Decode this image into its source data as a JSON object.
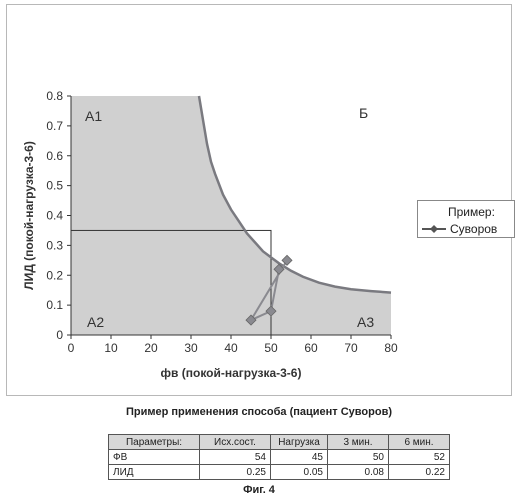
{
  "chart_data": {
    "type": "scatter",
    "xlabel": "фв (покой-нагрузка-3-6)",
    "ylabel": "ЛИД (покой-нагрузка-3-6)",
    "xlim": [
      0,
      80
    ],
    "ylim": [
      0,
      0.8
    ],
    "x_ticks": [
      "0",
      "10",
      "20",
      "30",
      "40",
      "50",
      "60",
      "70",
      "80"
    ],
    "y_ticks": [
      "0",
      "0.1",
      "0.2",
      "0.3",
      "0.4",
      "0.5",
      "0.6",
      "0.7",
      "0.8"
    ],
    "grid": false,
    "regions": [
      {
        "label": "А1"
      },
      {
        "label": "Б"
      },
      {
        "label": "А2"
      },
      {
        "label": "А3"
      }
    ],
    "boundary_curve": {
      "x": [
        32,
        33,
        34,
        35,
        36,
        38,
        40,
        42,
        44,
        46,
        48,
        50,
        52,
        55,
        58,
        62,
        66,
        70,
        75,
        80
      ],
      "y": [
        0.8,
        0.72,
        0.64,
        0.58,
        0.54,
        0.47,
        0.42,
        0.38,
        0.34,
        0.31,
        0.28,
        0.26,
        0.24,
        0.215,
        0.195,
        0.175,
        0.162,
        0.153,
        0.147,
        0.142
      ]
    },
    "rectangle": {
      "x": [
        0,
        50
      ],
      "y": [
        0,
        0.35
      ]
    },
    "series": [
      {
        "name": "Суворов",
        "x": [
          54,
          45,
          50,
          52
        ],
        "y": [
          0.25,
          0.05,
          0.08,
          0.22
        ]
      }
    ]
  },
  "legend": {
    "title": "Пример:",
    "entry": "Суворов"
  },
  "table": {
    "title": "Пример применения способа (пациент Суворов)",
    "headers": [
      "Параметры:",
      "Исх.сост.",
      "Нагрузка",
      "3 мин.",
      "6 мин."
    ],
    "rows": [
      {
        "label": "ФВ",
        "values": [
          "54",
          "45",
          "50",
          "52"
        ]
      },
      {
        "label": "ЛИД",
        "values": [
          "0.25",
          "0.05",
          "0.08",
          "0.22"
        ]
      }
    ]
  },
  "caption": "Фиг. 4",
  "colors": {
    "curve": "#7a7a80",
    "shade_left": "#d0d0d0",
    "shade_right": "#e6e6e6",
    "marker": "#8a8a90"
  }
}
